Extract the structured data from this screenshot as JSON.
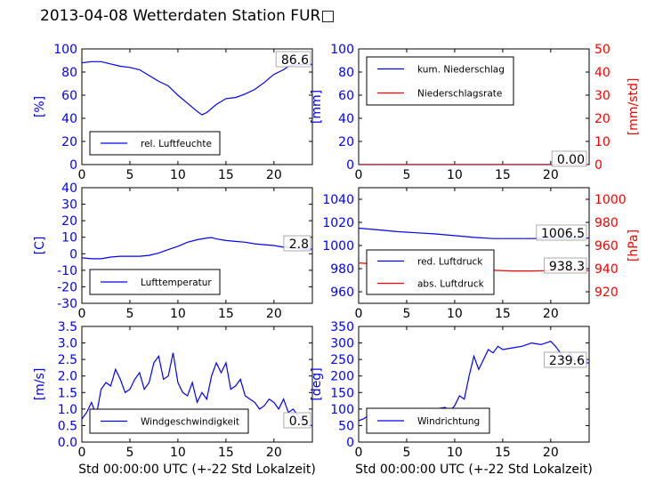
{
  "title": "2013-04-08 Wetterdaten Station FUR□",
  "colors": {
    "blue": "#0000ff",
    "red": "#ff0000",
    "black": "#000000"
  },
  "chart_data": [
    {
      "type": "line",
      "panel": "humidity",
      "ylabel": "[%]",
      "ylim": [
        0,
        100
      ],
      "yticks": [
        0,
        20,
        40,
        60,
        80,
        100
      ],
      "xlim": [
        0,
        24
      ],
      "xticks": [
        0,
        5,
        10,
        15,
        20
      ],
      "legend_placement": "lower-left",
      "current_value": "86.6",
      "series": [
        {
          "name": "rel. Luftfeuchte",
          "color": "#0000ff",
          "x": [
            0,
            1,
            2,
            3,
            4,
            5,
            6,
            7,
            8,
            9,
            10,
            11,
            12,
            12.5,
            13,
            14,
            15,
            16,
            17,
            18,
            19,
            20,
            21,
            21.5,
            22,
            23,
            24
          ],
          "y": [
            88,
            89,
            89,
            87,
            85,
            84,
            82,
            77,
            72,
            68,
            60,
            53,
            46,
            43,
            45,
            52,
            57,
            58,
            61,
            65,
            71,
            78,
            82,
            85,
            86,
            86.6,
            86.6
          ]
        }
      ]
    },
    {
      "type": "line",
      "panel": "precipitation",
      "ylabel": "[mm]",
      "ylim": [
        0,
        100
      ],
      "yticks": [
        0,
        20,
        40,
        60,
        80,
        100
      ],
      "y2label": "[mm/std]",
      "y2lim": [
        0,
        50
      ],
      "y2ticks": [
        0,
        10,
        20,
        30,
        40,
        50
      ],
      "xlim": [
        0,
        24
      ],
      "xticks": [
        0,
        5,
        10,
        15,
        20
      ],
      "legend_placement": "upper-left",
      "current_value": "0.00",
      "series": [
        {
          "name": "kum. Niederschlag",
          "color": "#0000ff",
          "axis": "left",
          "x": [
            0,
            24
          ],
          "y": [
            0,
            0
          ]
        },
        {
          "name": "Niederschlagsrate",
          "color": "#ff0000",
          "axis": "right",
          "x": [
            0,
            24
          ],
          "y": [
            0,
            0
          ]
        }
      ]
    },
    {
      "type": "line",
      "panel": "temperature",
      "ylabel": "[C]",
      "ylim": [
        -30,
        40
      ],
      "yticks": [
        -30,
        -20,
        -10,
        0,
        10,
        20,
        30,
        40
      ],
      "xlim": [
        0,
        24
      ],
      "xticks": [
        0,
        5,
        10,
        15,
        20
      ],
      "legend_placement": "lower-left",
      "current_value": "2.8",
      "series": [
        {
          "name": "Lufttemperatur",
          "color": "#0000ff",
          "x": [
            0,
            1,
            2,
            3,
            4,
            5,
            6,
            7,
            8,
            9,
            10,
            11,
            12,
            13,
            13.5,
            14,
            15,
            16,
            17,
            18,
            19,
            20,
            21,
            22,
            23,
            24
          ],
          "y": [
            -2.5,
            -3,
            -3,
            -2,
            -1.5,
            -1.5,
            -1.5,
            -1,
            0.5,
            2.5,
            4.5,
            7,
            8.5,
            9.5,
            9.8,
            9,
            8,
            7.5,
            7,
            6,
            5.5,
            5,
            4,
            3.5,
            2.8,
            2.8
          ]
        }
      ]
    },
    {
      "type": "line",
      "panel": "pressure",
      "ylabel": "",
      "ylim": [
        950,
        1050
      ],
      "yticks": [
        960,
        980,
        1000,
        1020,
        1040
      ],
      "y2label": "[hPa]",
      "y2lim": [
        910,
        1010
      ],
      "y2ticks": [
        920,
        940,
        960,
        980,
        1000
      ],
      "xlim": [
        0,
        24
      ],
      "xticks": [
        0,
        5,
        10,
        15,
        20
      ],
      "legend_placement": "lower-left",
      "current_values": [
        "1006.5",
        "938.3"
      ],
      "series": [
        {
          "name": "red. Luftdruck",
          "color": "#0000ff",
          "axis": "left",
          "x": [
            0,
            2,
            4,
            6,
            8,
            10,
            12,
            14,
            16,
            18,
            20,
            22,
            24
          ],
          "y": [
            1015,
            1013.5,
            1012,
            1011,
            1010,
            1008.5,
            1007,
            1006,
            1006,
            1006,
            1006.5,
            1006.5,
            1006.5
          ]
        },
        {
          "name": "abs. Luftdruck",
          "color": "#ff0000",
          "axis": "right",
          "x": [
            0,
            2,
            4,
            6,
            8,
            10,
            12,
            14,
            16,
            18,
            20,
            22,
            24
          ],
          "y": [
            945,
            943.5,
            942,
            941,
            940,
            939.5,
            939,
            938.5,
            938,
            938,
            938.3,
            938.3,
            938.3
          ]
        }
      ]
    },
    {
      "type": "line",
      "panel": "wind_speed",
      "ylabel": "[m/s]",
      "ylim": [
        0,
        3.5
      ],
      "yticks": [
        0.0,
        0.5,
        1.0,
        1.5,
        2.0,
        2.5,
        3.0,
        3.5
      ],
      "xlim": [
        0,
        24
      ],
      "xticks": [
        0,
        5,
        10,
        15,
        20
      ],
      "xlabel": "Std 00:00:00 UTC (+-22 Std Lokalzeit)",
      "legend_placement": "lower-center",
      "current_value": "0.5",
      "series": [
        {
          "name": "Windgeschwindigkeit",
          "color": "#0000ff",
          "x": [
            0,
            0.5,
            1,
            1.5,
            2,
            2.5,
            3,
            3.5,
            4,
            4.5,
            5,
            5.5,
            6,
            6.5,
            7,
            7.5,
            8,
            8.5,
            9,
            9.5,
            10,
            10.5,
            11,
            11.5,
            12,
            12.5,
            13,
            13.5,
            14,
            14.5,
            15,
            15.5,
            16,
            16.5,
            17,
            17.5,
            18,
            18.5,
            19,
            19.5,
            20,
            20.5,
            21,
            21.5,
            22,
            22.5,
            23,
            23.5,
            24
          ],
          "y": [
            0.7,
            0.9,
            1.2,
            0.8,
            1.6,
            1.8,
            1.7,
            2.2,
            1.9,
            1.5,
            1.6,
            1.9,
            2.1,
            1.6,
            1.8,
            2.4,
            2.6,
            1.9,
            2.0,
            2.7,
            1.8,
            1.5,
            1.4,
            1.8,
            1.2,
            1.5,
            1.3,
            2.0,
            2.4,
            2.1,
            2.4,
            1.6,
            1.7,
            1.9,
            1.4,
            1.3,
            1.2,
            1.0,
            1.1,
            1.3,
            1.2,
            1.0,
            1.3,
            0.9,
            1.0,
            0.8,
            0.6,
            0.5,
            0.5
          ]
        }
      ]
    },
    {
      "type": "line",
      "panel": "wind_direction",
      "ylabel": "[deg]",
      "ylim": [
        0,
        350
      ],
      "yticks": [
        0,
        50,
        100,
        150,
        200,
        250,
        300,
        350
      ],
      "xlim": [
        0,
        24
      ],
      "xticks": [
        0,
        5,
        10,
        15,
        20
      ],
      "xlabel": "Std 00:00:00 UTC (+-22 Std Lokalzeit)",
      "legend_placement": "lower-left",
      "current_value": "239.6",
      "series": [
        {
          "name": "Windrichtung",
          "color": "#0000ff",
          "x": [
            0,
            0.5,
            1,
            1.5,
            2,
            3,
            4,
            5,
            6,
            7,
            8,
            9,
            9.5,
            10,
            10.5,
            11,
            11.5,
            12,
            12.5,
            13,
            13.5,
            14,
            14.5,
            15,
            16,
            17,
            18,
            19,
            20,
            20.5,
            21,
            21.5,
            22,
            22.5,
            23,
            23.5,
            24
          ],
          "y": [
            65,
            70,
            80,
            85,
            90,
            95,
            90,
            95,
            100,
            95,
            100,
            105,
            95,
            110,
            140,
            130,
            200,
            260,
            220,
            250,
            280,
            270,
            290,
            280,
            285,
            290,
            300,
            295,
            305,
            290,
            270,
            250,
            270,
            245,
            250,
            240,
            239.6
          ]
        }
      ]
    }
  ],
  "legend_labels": {
    "humidity": "rel. Luftfeuchte",
    "precip_cum": "kum. Niederschlag",
    "precip_rate": "Niederschlagsrate",
    "temperature": "Lufttemperatur",
    "pressure_red": "red. Luftdruck",
    "pressure_abs": "abs. Luftdruck",
    "wind_speed": "Windgeschwindigkeit",
    "wind_dir": "Windrichtung"
  }
}
